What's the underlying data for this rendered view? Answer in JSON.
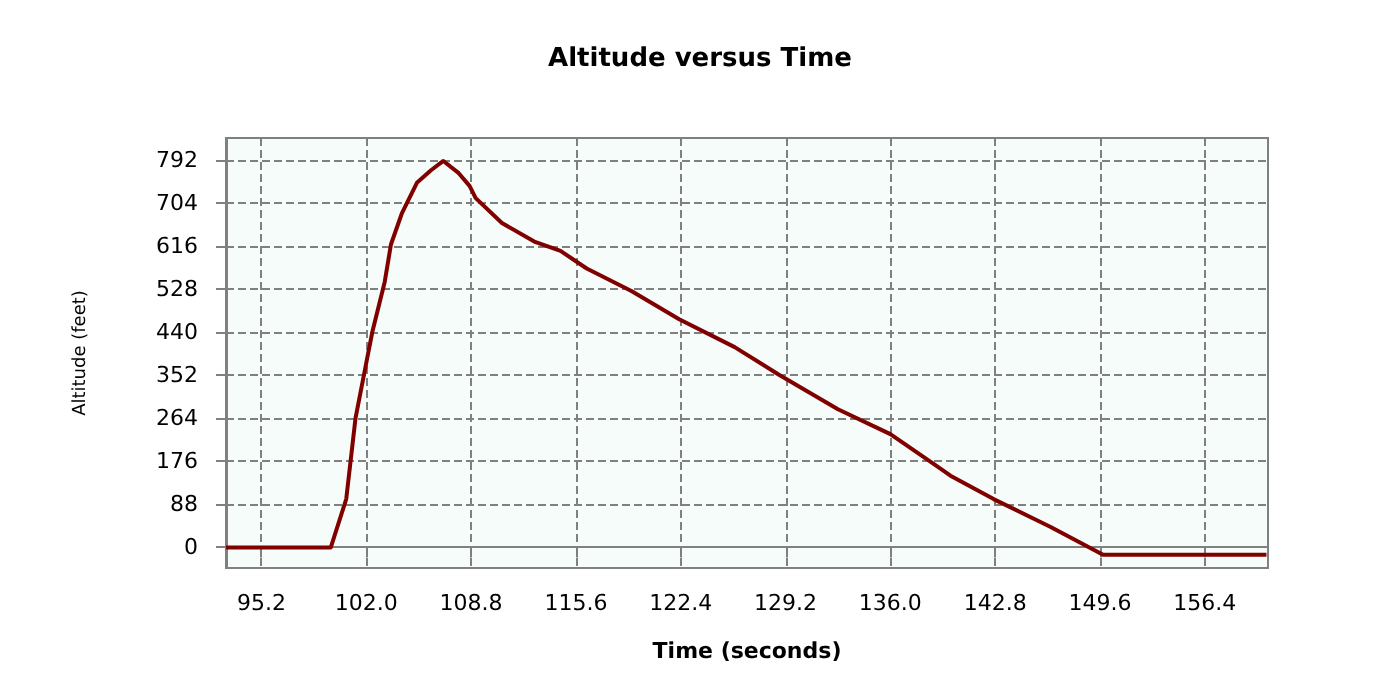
{
  "chart_data": {
    "type": "line",
    "title": "Altitude versus Time",
    "xlabel": "Time (seconds)",
    "ylabel": "Altitude (feet)",
    "x": [
      92.9,
      99.7,
      100.7,
      101.3,
      102.0,
      102.4,
      103.2,
      103.6,
      104.3,
      105.3,
      106.2,
      107.0,
      108.0,
      108.7,
      109.1,
      110.8,
      112.9,
      114.6,
      116.3,
      119.2,
      122.3,
      125.9,
      128.8,
      132.6,
      136.0,
      138.9,
      139.9,
      142.7,
      146.4,
      149.8,
      160.4
    ],
    "series": [
      {
        "color": "#800000",
        "values": [
          0,
          0,
          99,
          264,
          378,
          442,
          544,
          620,
          683,
          747,
          772,
          791,
          766,
          740,
          715,
          664,
          626,
          607,
          571,
          525,
          467,
          410,
          353,
          283,
          232,
          169,
          147,
          99,
          42,
          -15,
          -15
        ]
      }
    ],
    "xlim": [
      92.9,
      160.5
    ],
    "xticks": [
      95.2,
      {
        "value": 102,
        "label": "102.0"
      },
      108.8,
      115.6,
      122.4,
      129.2,
      {
        "value": 136,
        "label": "136.0"
      },
      142.8,
      149.6,
      156.4
    ],
    "ylim": [
      -42,
      838
    ],
    "yticks": [
      0,
      88,
      176,
      264,
      352,
      440,
      528,
      616,
      704,
      792
    ],
    "grid": true,
    "marker": "none",
    "line_style": "solid"
  }
}
